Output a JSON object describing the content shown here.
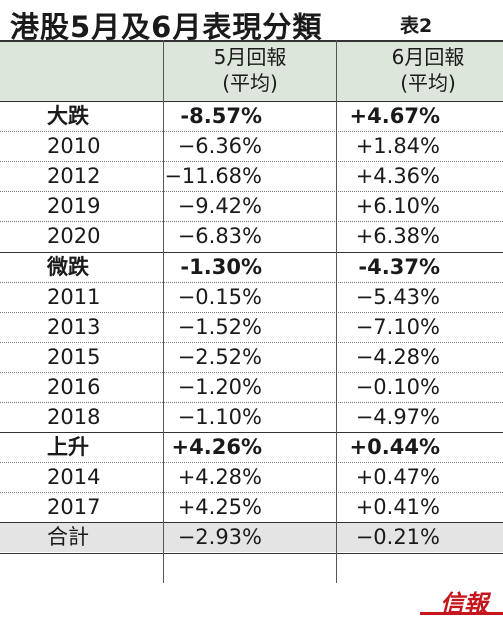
{
  "title": "港股5月及6月表現分類",
  "tag": "表2",
  "table": {
    "header": [
      [
        "5月回報",
        "(平均)"
      ],
      [
        "6月回報",
        "(平均)"
      ]
    ],
    "groups": [
      {
        "summary": [
          "大跌",
          "-8.57%",
          "+4.67%"
        ],
        "rows": [
          [
            "2010",
            "−6.36%",
            "+1.84%"
          ],
          [
            "2012",
            "−11.68%",
            "+4.36%"
          ],
          [
            "2019",
            "−9.42%",
            "+6.10%"
          ],
          [
            "2020",
            "−6.83%",
            "+6.38%"
          ]
        ]
      },
      {
        "summary": [
          "微跌",
          "-1.30%",
          "-4.37%"
        ],
        "rows": [
          [
            "2011",
            "−0.15%",
            "−5.43%"
          ],
          [
            "2013",
            "−1.52%",
            "−7.10%"
          ],
          [
            "2015",
            "−2.52%",
            "−4.28%"
          ],
          [
            "2016",
            "−1.20%",
            "−0.10%"
          ],
          [
            "2018",
            "−1.10%",
            "−4.97%"
          ]
        ]
      },
      {
        "summary": [
          "上升",
          "+4.26%",
          "+0.44%"
        ],
        "rows": [
          [
            "2014",
            "+4.28%",
            "+0.47%"
          ],
          [
            "2017",
            "+4.25%",
            "+0.41%"
          ]
        ]
      }
    ],
    "total": [
      "合計",
      "−2.93%",
      "−0.21%"
    ]
  },
  "logo": "信報"
}
